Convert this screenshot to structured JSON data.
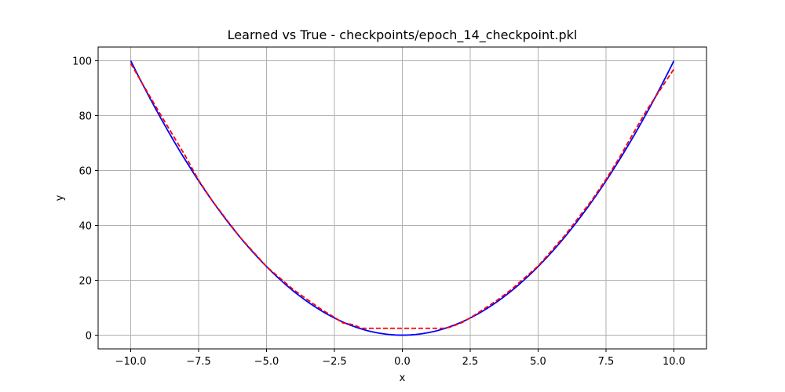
{
  "chart_data": {
    "type": "line",
    "title": "Learned vs True - checkpoints/epoch_14_checkpoint.pkl",
    "xlabel": "x",
    "ylabel": "y",
    "xlim": [
      -11.2,
      11.2
    ],
    "ylim": [
      -5,
      105
    ],
    "grid": true,
    "xticks": [
      -10.0,
      -7.5,
      -5.0,
      -2.5,
      0.0,
      2.5,
      5.0,
      7.5,
      10.0
    ],
    "xtick_labels": [
      "−10.0",
      "−7.5",
      "−5.0",
      "−2.5",
      "0.0",
      "2.5",
      "5.0",
      "7.5",
      "10.0"
    ],
    "yticks": [
      0,
      20,
      40,
      60,
      80,
      100
    ],
    "ytick_labels": [
      "0",
      "20",
      "40",
      "60",
      "80",
      "100"
    ],
    "series": [
      {
        "style": "solid",
        "color": "#0000ff",
        "function": "x^2",
        "x": [
          -10,
          -9,
          -8,
          -7,
          -6,
          -5,
          -4,
          -3,
          -2,
          -1,
          0,
          1,
          2,
          3,
          4,
          5,
          6,
          7,
          8,
          9,
          10
        ],
        "y": [
          100,
          81,
          64,
          49,
          36,
          25,
          16,
          9,
          4,
          1,
          0,
          1,
          4,
          9,
          16,
          25,
          36,
          49,
          64,
          81,
          100
        ]
      },
      {
        "style": "dashed",
        "color": "#ff0000",
        "x": [
          -10.0,
          -9.0,
          -8.0,
          -7.5,
          -7.0,
          -6.0,
          -5.0,
          -4.0,
          -3.0,
          -2.5,
          -2.2,
          -1.8,
          -1.5,
          -1.0,
          0.0,
          1.0,
          1.5,
          1.8,
          2.2,
          2.5,
          3.0,
          3.5,
          4.0,
          5.0,
          6.0,
          7.0,
          7.5,
          8.0,
          8.5,
          9.0,
          10.0
        ],
        "y": [
          99.0,
          82.0,
          65.5,
          56.5,
          49.0,
          36.0,
          25.0,
          16.5,
          9.5,
          6.5,
          4.5,
          3.8,
          2.5,
          2.5,
          2.5,
          2.5,
          2.5,
          3.0,
          4.6,
          6.3,
          9.5,
          12.8,
          16.5,
          25.2,
          36.5,
          49.5,
          56.8,
          64.8,
          73.5,
          82.0,
          97.0
        ]
      }
    ]
  }
}
